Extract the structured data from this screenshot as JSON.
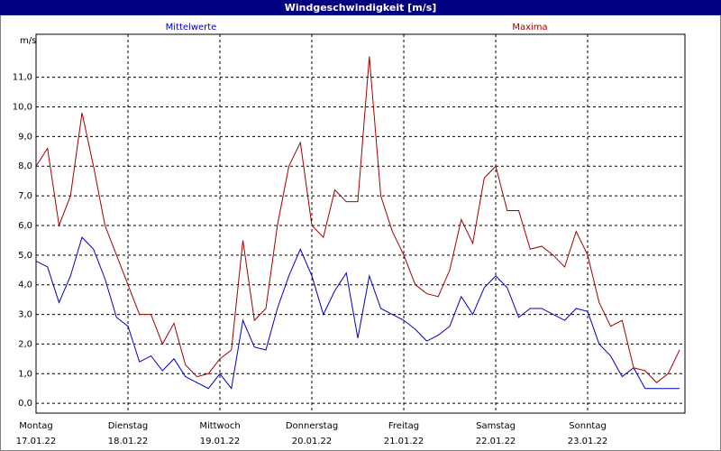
{
  "chart_data": {
    "type": "line",
    "title": "Windgeschwindigkeit [m/s]",
    "y_unit": "m/s",
    "x": [
      0,
      3,
      6,
      9,
      12,
      15,
      18,
      21,
      24,
      27,
      30,
      33,
      36,
      39,
      42,
      45,
      48,
      51,
      54,
      57,
      60,
      63,
      66,
      69,
      72,
      75,
      78,
      81,
      84,
      87,
      90,
      93,
      96,
      99,
      102,
      105,
      108,
      111,
      114,
      117,
      120,
      123,
      126,
      129,
      132,
      135,
      138,
      141,
      144,
      147,
      150,
      153,
      156,
      159,
      162,
      165,
      168
    ],
    "xlim": [
      0,
      169.4
    ],
    "xticks": [
      {
        "value": 0,
        "label": "Montag",
        "date": "17.01.22"
      },
      {
        "value": 24,
        "label": "Dienstag",
        "date": "18.01.22"
      },
      {
        "value": 48,
        "label": "Mittwoch",
        "date": "19.01.22"
      },
      {
        "value": 72,
        "label": "Donnerstag",
        "date": "20.01.22"
      },
      {
        "value": 96,
        "label": "Freitag",
        "date": "21.01.22"
      },
      {
        "value": 120,
        "label": "Samstag",
        "date": "22.01.22"
      },
      {
        "value": 144,
        "label": "Sonntag",
        "date": "23.01.22"
      }
    ],
    "ylim": [
      -0.33,
      12.45
    ],
    "yticks": [
      {
        "value": 0,
        "label": "0,0"
      },
      {
        "value": 1,
        "label": "1,0"
      },
      {
        "value": 2,
        "label": "2,0"
      },
      {
        "value": 3,
        "label": "3,0"
      },
      {
        "value": 4,
        "label": "4,0"
      },
      {
        "value": 5,
        "label": "5,0"
      },
      {
        "value": 6,
        "label": "6,0"
      },
      {
        "value": 7,
        "label": "7,0"
      },
      {
        "value": 8,
        "label": "8,0"
      },
      {
        "value": 9,
        "label": "9,0"
      },
      {
        "value": 10,
        "label": "10,0"
      },
      {
        "value": 11,
        "label": "11,0"
      }
    ],
    "grid": true,
    "series": [
      {
        "name": "Mittelwerte",
        "color": "#0000c0",
        "values": [
          4.8,
          4.6,
          3.4,
          4.3,
          5.6,
          5.2,
          4.2,
          2.9,
          2.6,
          1.4,
          1.6,
          1.1,
          1.5,
          0.9,
          0.7,
          0.5,
          1.0,
          0.5,
          2.8,
          1.9,
          1.8,
          3.2,
          4.3,
          5.2,
          4.3,
          3.0,
          3.8,
          4.4,
          2.2,
          4.3,
          3.2,
          3.0,
          2.8,
          2.5,
          2.1,
          2.3,
          2.6,
          3.6,
          3.0,
          3.9,
          4.3,
          3.9,
          2.9,
          3.2,
          3.2,
          3.0,
          2.8,
          3.2,
          3.1,
          2.0,
          1.6,
          0.9,
          1.2,
          0.5,
          0.5,
          0.5,
          0.5
        ]
      },
      {
        "name": "Maxima",
        "color": "#a00000",
        "values": [
          8.0,
          8.6,
          6.0,
          7.0,
          9.8,
          8.0,
          6.0,
          5.0,
          4.0,
          3.0,
          3.0,
          2.0,
          2.7,
          1.3,
          0.9,
          1.0,
          1.5,
          1.8,
          5.5,
          2.8,
          3.2,
          6.0,
          8.0,
          8.8,
          6.0,
          5.6,
          7.2,
          6.8,
          6.8,
          11.7,
          7.0,
          5.8,
          5.0,
          4.0,
          3.7,
          3.6,
          4.5,
          6.2,
          5.4,
          7.6,
          8.0,
          6.5,
          6.5,
          5.2,
          5.3,
          5.0,
          4.6,
          5.8,
          5.0,
          3.4,
          2.6,
          2.8,
          1.2,
          1.1,
          0.7,
          1.0,
          1.8
        ]
      }
    ]
  }
}
